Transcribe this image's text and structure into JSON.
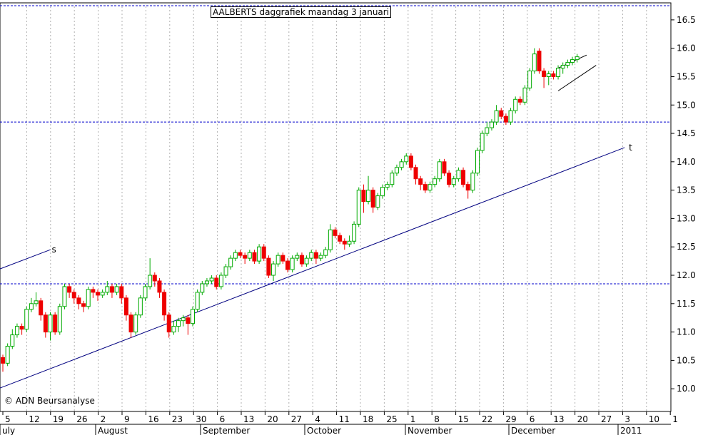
{
  "title": "AALBERTS daggrafiek maandag 3 januari",
  "credit": "© ADN Beursanalyse",
  "colors": {
    "up": "#00aa00",
    "down": "#ee0000",
    "hline": "#0000cc",
    "trend": "#000080",
    "grid": "#b0b0b0"
  },
  "chart_data": {
    "type": "candlestick",
    "ylim": [
      9.6,
      16.8
    ],
    "y_ticks": [
      "10.0",
      "10.5",
      "11.0",
      "11.5",
      "12.0",
      "12.5",
      "13.0",
      "13.5",
      "14.0",
      "14.5",
      "15.0",
      "15.5",
      "16.0",
      "16.5"
    ],
    "x_ticks": [
      "5",
      "12",
      "19",
      "26",
      "2",
      "9",
      "16",
      "23",
      "30",
      "6",
      "13",
      "20",
      "27",
      "4",
      "11",
      "18",
      "25",
      "1",
      "8",
      "15",
      "22",
      "29",
      "6",
      "13",
      "20",
      "27",
      "3",
      "10",
      "1"
    ],
    "months": [
      "uly",
      "August",
      "September",
      "October",
      "November",
      "December",
      "2011"
    ],
    "horizontal_levels": [
      16.75,
      14.7,
      11.85
    ],
    "trend_lines": [
      {
        "label": "",
        "from": [
          -1,
          10.0
        ],
        "to": [
          131,
          14.25
        ]
      },
      {
        "label": "s",
        "from": [
          -1,
          12.1
        ],
        "to": [
          10,
          12.45
        ]
      },
      {
        "label": "t",
        "from": [
          131,
          14.25
        ],
        "to": [
          131,
          14.25
        ]
      }
    ],
    "flag_lines": [
      {
        "from": [
          117,
          15.65
        ],
        "to": [
          123,
          15.88
        ]
      },
      {
        "from": [
          117,
          15.25
        ],
        "to": [
          125,
          15.7
        ]
      }
    ],
    "candles": [
      [
        10.55,
        10.45,
        10.6,
        10.3
      ],
      [
        10.45,
        10.75,
        10.8,
        10.4
      ],
      [
        10.75,
        10.95,
        11.05,
        10.7
      ],
      [
        10.95,
        11.1,
        11.15,
        10.9
      ],
      [
        11.1,
        11.05,
        11.15,
        10.95
      ],
      [
        11.05,
        11.4,
        11.45,
        11.0
      ],
      [
        11.4,
        11.5,
        11.6,
        11.35
      ],
      [
        11.5,
        11.55,
        11.7,
        11.45
      ],
      [
        11.55,
        11.3,
        11.6,
        11.2
      ],
      [
        11.3,
        11.0,
        11.35,
        10.9
      ],
      [
        11.0,
        11.3,
        11.35,
        10.85
      ],
      [
        11.3,
        11.0,
        11.35,
        10.95
      ],
      [
        11.0,
        11.45,
        11.5,
        10.95
      ],
      [
        11.45,
        11.8,
        11.85,
        11.4
      ],
      [
        11.8,
        11.7,
        11.85,
        11.6
      ],
      [
        11.7,
        11.6,
        11.75,
        11.5
      ],
      [
        11.6,
        11.5,
        11.65,
        11.4
      ],
      [
        11.5,
        11.45,
        11.55,
        11.35
      ],
      [
        11.45,
        11.75,
        11.8,
        11.4
      ],
      [
        11.75,
        11.7,
        11.8,
        11.6
      ],
      [
        11.7,
        11.65,
        11.75,
        11.55
      ],
      [
        11.65,
        11.7,
        11.75,
        11.6
      ],
      [
        11.7,
        11.8,
        11.9,
        11.65
      ],
      [
        11.8,
        11.7,
        11.85,
        11.6
      ],
      [
        11.7,
        11.8,
        11.85,
        11.65
      ],
      [
        11.8,
        11.6,
        11.85,
        11.5
      ],
      [
        11.6,
        11.3,
        11.65,
        11.2
      ],
      [
        11.3,
        11.0,
        11.35,
        10.9
      ],
      [
        11.0,
        11.3,
        11.35,
        10.95
      ],
      [
        11.3,
        11.6,
        11.65,
        11.25
      ],
      [
        11.6,
        11.8,
        11.85,
        11.55
      ],
      [
        11.8,
        12.0,
        12.3,
        11.75
      ],
      [
        12.0,
        11.9,
        12.05,
        11.8
      ],
      [
        11.9,
        11.7,
        11.95,
        11.6
      ],
      [
        11.7,
        11.3,
        11.75,
        11.2
      ],
      [
        11.3,
        11.0,
        11.35,
        10.9
      ],
      [
        11.0,
        11.1,
        11.2,
        10.95
      ],
      [
        11.1,
        11.2,
        11.25,
        11.0
      ],
      [
        11.2,
        11.25,
        11.3,
        11.1
      ],
      [
        11.25,
        11.15,
        11.3,
        10.95
      ],
      [
        11.15,
        11.4,
        11.45,
        11.1
      ],
      [
        11.4,
        11.7,
        11.75,
        11.35
      ],
      [
        11.7,
        11.85,
        11.9,
        11.65
      ],
      [
        11.85,
        11.9,
        11.95,
        11.8
      ],
      [
        11.9,
        11.95,
        12.0,
        11.85
      ],
      [
        11.95,
        11.8,
        12.0,
        11.75
      ],
      [
        11.8,
        12.0,
        12.05,
        11.75
      ],
      [
        12.0,
        12.15,
        12.2,
        11.95
      ],
      [
        12.15,
        12.3,
        12.35,
        12.1
      ],
      [
        12.3,
        12.4,
        12.45,
        12.25
      ],
      [
        12.4,
        12.35,
        12.45,
        12.3
      ],
      [
        12.35,
        12.3,
        12.4,
        12.2
      ],
      [
        12.3,
        12.4,
        12.45,
        12.25
      ],
      [
        12.4,
        12.25,
        12.45,
        12.2
      ],
      [
        12.25,
        12.5,
        12.55,
        12.2
      ],
      [
        12.5,
        12.3,
        12.55,
        12.25
      ],
      [
        12.3,
        12.0,
        12.35,
        11.95
      ],
      [
        12.0,
        12.2,
        12.25,
        11.9
      ],
      [
        12.2,
        12.35,
        12.4,
        12.15
      ],
      [
        12.35,
        12.25,
        12.4,
        12.2
      ],
      [
        12.25,
        12.1,
        12.3,
        12.05
      ],
      [
        12.1,
        12.3,
        12.35,
        12.05
      ],
      [
        12.3,
        12.35,
        12.4,
        12.25
      ],
      [
        12.35,
        12.2,
        12.4,
        12.15
      ],
      [
        12.2,
        12.3,
        12.35,
        12.15
      ],
      [
        12.3,
        12.4,
        12.45,
        12.25
      ],
      [
        12.4,
        12.3,
        12.45,
        12.2
      ],
      [
        12.3,
        12.35,
        12.4,
        12.25
      ],
      [
        12.35,
        12.45,
        12.5,
        12.3
      ],
      [
        12.45,
        12.8,
        12.9,
        12.4
      ],
      [
        12.8,
        12.7,
        12.85,
        12.65
      ],
      [
        12.7,
        12.6,
        12.75,
        12.55
      ],
      [
        12.6,
        12.55,
        12.65,
        12.45
      ],
      [
        12.55,
        12.6,
        12.7,
        12.5
      ],
      [
        12.6,
        12.9,
        12.95,
        12.55
      ],
      [
        12.9,
        13.5,
        13.55,
        12.85
      ],
      [
        13.5,
        13.3,
        13.6,
        13.1
      ],
      [
        13.3,
        13.5,
        13.75,
        13.25
      ],
      [
        13.5,
        13.2,
        13.55,
        13.1
      ],
      [
        13.2,
        13.4,
        13.45,
        13.15
      ],
      [
        13.4,
        13.55,
        13.6,
        13.35
      ],
      [
        13.55,
        13.6,
        13.65,
        13.5
      ],
      [
        13.6,
        13.8,
        13.85,
        13.55
      ],
      [
        13.8,
        13.9,
        13.95,
        13.75
      ],
      [
        13.9,
        14.0,
        14.05,
        13.85
      ],
      [
        14.0,
        14.1,
        14.15,
        13.95
      ],
      [
        14.1,
        13.9,
        14.15,
        13.85
      ],
      [
        13.9,
        13.7,
        13.95,
        13.6
      ],
      [
        13.7,
        13.6,
        13.75,
        13.5
      ],
      [
        13.6,
        13.5,
        13.65,
        13.45
      ],
      [
        13.5,
        13.6,
        13.65,
        13.45
      ],
      [
        13.6,
        13.7,
        13.75,
        13.55
      ],
      [
        13.7,
        14.0,
        14.05,
        13.65
      ],
      [
        14.0,
        13.8,
        14.05,
        13.75
      ],
      [
        13.8,
        13.6,
        13.85,
        13.55
      ],
      [
        13.6,
        13.7,
        13.75,
        13.55
      ],
      [
        13.7,
        13.85,
        13.9,
        13.65
      ],
      [
        13.85,
        13.6,
        13.9,
        13.55
      ],
      [
        13.6,
        13.5,
        13.65,
        13.35
      ],
      [
        13.5,
        13.8,
        13.85,
        13.45
      ],
      [
        13.8,
        14.2,
        14.25,
        13.75
      ],
      [
        14.2,
        14.5,
        14.55,
        14.15
      ],
      [
        14.5,
        14.6,
        14.7,
        14.45
      ],
      [
        14.6,
        14.7,
        14.75,
        14.55
      ],
      [
        14.7,
        14.9,
        15.0,
        14.65
      ],
      [
        14.9,
        14.8,
        14.95,
        14.75
      ],
      [
        14.8,
        14.7,
        14.85,
        14.65
      ],
      [
        14.7,
        14.9,
        14.95,
        14.65
      ],
      [
        14.9,
        15.1,
        15.15,
        14.85
      ],
      [
        15.1,
        15.05,
        15.15,
        15.0
      ],
      [
        15.05,
        15.3,
        15.35,
        15.0
      ],
      [
        15.3,
        15.6,
        15.65,
        15.25
      ],
      [
        15.6,
        15.9,
        16.0,
        15.55
      ],
      [
        15.95,
        15.6,
        16.0,
        15.55
      ],
      [
        15.6,
        15.5,
        15.65,
        15.3
      ],
      [
        15.5,
        15.55,
        15.6,
        15.35
      ],
      [
        15.55,
        15.5,
        15.6,
        15.45
      ],
      [
        15.5,
        15.65,
        15.7,
        15.45
      ],
      [
        15.65,
        15.7,
        15.75,
        15.55
      ],
      [
        15.7,
        15.75,
        15.8,
        15.65
      ],
      [
        15.75,
        15.8,
        15.85,
        15.7
      ],
      [
        15.8,
        15.85,
        15.9,
        15.75
      ]
    ]
  }
}
